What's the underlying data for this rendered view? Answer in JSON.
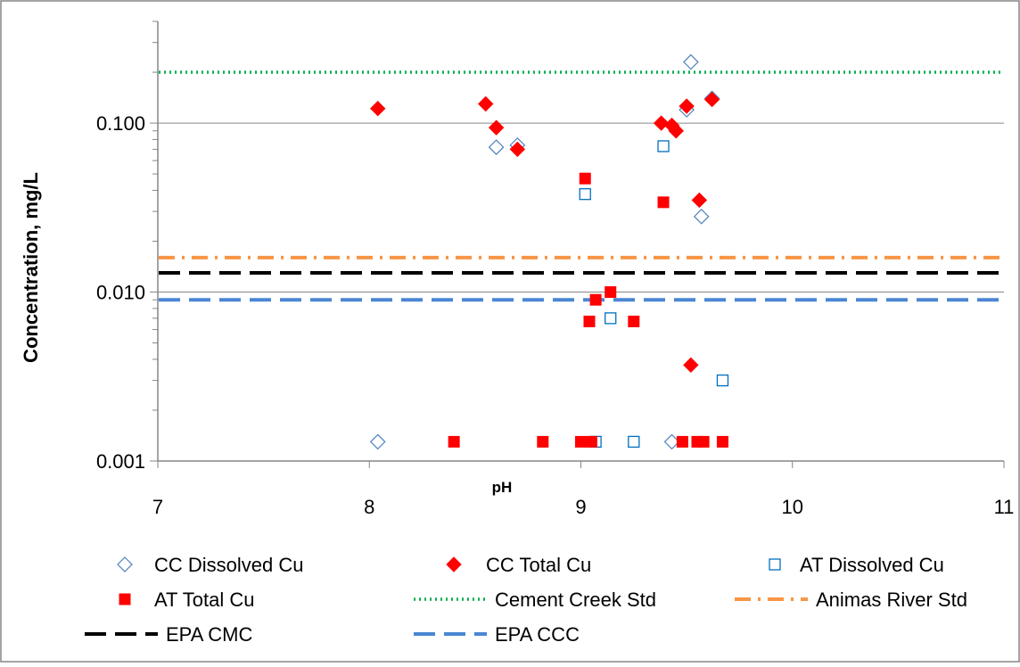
{
  "chart_data": {
    "type": "scatter",
    "xlabel": "pH",
    "ylabel": "Concentration, mg/L",
    "xlim": [
      7,
      11
    ],
    "ylim": [
      0.001,
      0.4
    ],
    "yscale": "log",
    "x_ticks": [
      "7",
      "8",
      "9",
      "10",
      "11"
    ],
    "y_ticks": [
      "0.001",
      "0.010",
      "0.100"
    ],
    "grid": "horizontal major gridlines",
    "legend_position": "bottom",
    "series": [
      {
        "name": "CC Dissolved Cu",
        "marker": "diamond-open",
        "color": "#4f81bd",
        "points": [
          [
            8.04,
            0.0013
          ],
          [
            8.6,
            0.072
          ],
          [
            8.7,
            0.074
          ],
          [
            9.43,
            0.0013
          ],
          [
            9.5,
            0.12
          ],
          [
            9.52,
            0.23
          ],
          [
            9.57,
            0.028
          ],
          [
            9.62,
            0.14
          ]
        ]
      },
      {
        "name": "CC Total Cu",
        "marker": "diamond-filled",
        "color": "#ff0000",
        "points": [
          [
            8.04,
            0.122
          ],
          [
            8.55,
            0.13
          ],
          [
            8.6,
            0.094
          ],
          [
            8.7,
            0.07
          ],
          [
            9.38,
            0.1
          ],
          [
            9.43,
            0.097
          ],
          [
            9.45,
            0.09
          ],
          [
            9.5,
            0.126
          ],
          [
            9.52,
            0.0037
          ],
          [
            9.56,
            0.035
          ],
          [
            9.62,
            0.138
          ]
        ]
      },
      {
        "name": "AT Dissolved Cu",
        "marker": "square-open",
        "color": "#0070c0",
        "points": [
          [
            9.02,
            0.038
          ],
          [
            9.07,
            0.0013
          ],
          [
            9.14,
            0.007
          ],
          [
            9.25,
            0.0013
          ],
          [
            9.39,
            0.073
          ],
          [
            9.67,
            0.003
          ]
        ]
      },
      {
        "name": "AT Total Cu",
        "marker": "square-filled",
        "color": "#ff0000",
        "points": [
          [
            8.4,
            0.0013
          ],
          [
            8.82,
            0.0013
          ],
          [
            9.0,
            0.0013
          ],
          [
            9.02,
            0.047
          ],
          [
            9.04,
            0.0067
          ],
          [
            9.05,
            0.0013
          ],
          [
            9.07,
            0.009
          ],
          [
            9.14,
            0.01
          ],
          [
            9.25,
            0.0067
          ],
          [
            9.39,
            0.034
          ],
          [
            9.48,
            0.0013
          ],
          [
            9.55,
            0.0013
          ],
          [
            9.58,
            0.0013
          ],
          [
            9.67,
            0.0013
          ]
        ]
      },
      {
        "name": "Cement Creek  Std",
        "line": "dotted",
        "color": "#00b050",
        "value": 0.2
      },
      {
        "name": "Animas River Std",
        "line": "dash-dot",
        "color": "#f79646",
        "value": 0.016
      },
      {
        "name": "EPA CMC",
        "line": "dashed",
        "color": "#000000",
        "value": 0.013
      },
      {
        "name": "EPA CCC",
        "line": "dashed",
        "color": "#4a86d4",
        "value": 0.009
      }
    ]
  }
}
